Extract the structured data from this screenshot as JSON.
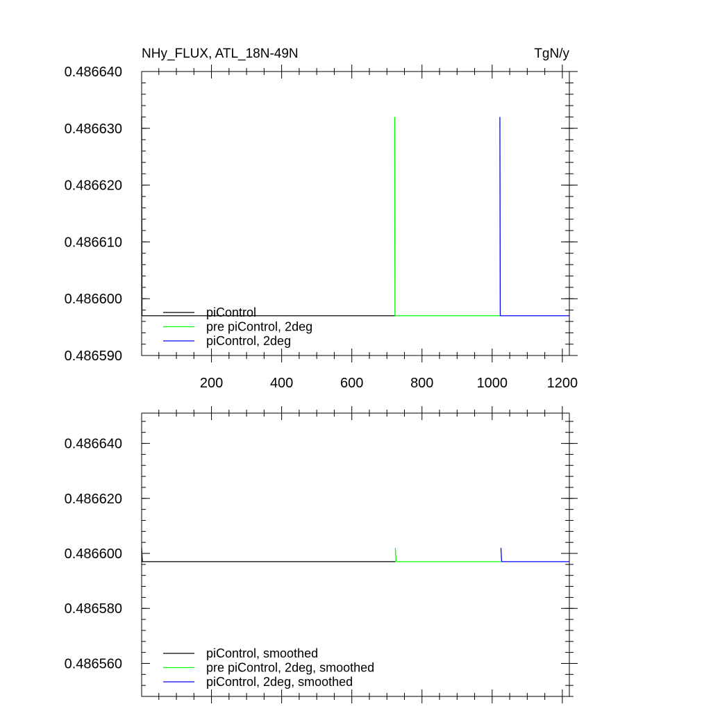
{
  "chart_data": [
    {
      "type": "line",
      "title_left": "NHy_FLUX, ATL_18N-49N",
      "title_right": "TgN/y",
      "xlim": [
        1,
        1220
      ],
      "ylim": [
        0.48659,
        0.48664
      ],
      "x_ticks": [
        200,
        400,
        600,
        800,
        1000,
        1200
      ],
      "x_tick_labels": [
        "200",
        "400",
        "600",
        "800",
        "1000",
        "1200"
      ],
      "y_ticks": [
        0.48659,
        0.4866,
        0.48661,
        0.48662,
        0.48663,
        0.48664
      ],
      "y_tick_labels": [
        "0.486590",
        "0.486600",
        "0.486610",
        "0.486620",
        "0.486630",
        "0.486640"
      ],
      "legend_position": "bottom-left",
      "series": [
        {
          "name": "piControl",
          "color": "#000000",
          "x": [
            1,
            1,
            2,
            722
          ],
          "y": [
            0.486632,
            0.486632,
            0.486597,
            0.486597
          ]
        },
        {
          "name": "pre piControl, 2deg",
          "color": "#00ff00",
          "x": [
            722,
            723,
            1022
          ],
          "y": [
            0.486632,
            0.486597,
            0.486597
          ]
        },
        {
          "name": "piControl, 2deg",
          "color": "#0000ff",
          "x": [
            1022,
            1023,
            1220
          ],
          "y": [
            0.486632,
            0.486597,
            0.486597
          ]
        }
      ]
    },
    {
      "type": "line",
      "xlim": [
        1,
        1220
      ],
      "ylim": [
        0.486548,
        0.486651
      ],
      "x_ticks": [
        200,
        400,
        600,
        800,
        1000,
        1200
      ],
      "y_ticks": [
        0.48656,
        0.48658,
        0.4866,
        0.48662,
        0.48664
      ],
      "y_tick_labels": [
        "0.486560",
        "0.486580",
        "0.486600",
        "0.486620",
        "0.486640"
      ],
      "legend_position": "bottom-left",
      "series": [
        {
          "name": "piControl, smoothed",
          "color": "#000000",
          "x": [
            1,
            3,
            724
          ],
          "y": [
            0.486602,
            0.486597,
            0.486597
          ]
        },
        {
          "name": "pre piControl, 2deg, smoothed",
          "color": "#00ff00",
          "x": [
            724,
            726,
            1025
          ],
          "y": [
            0.486602,
            0.486597,
            0.486597
          ]
        },
        {
          "name": "piControl, 2deg, smoothed",
          "color": "#0000ff",
          "x": [
            1025,
            1027,
            1220
          ],
          "y": [
            0.486602,
            0.486597,
            0.486597
          ]
        }
      ]
    }
  ]
}
